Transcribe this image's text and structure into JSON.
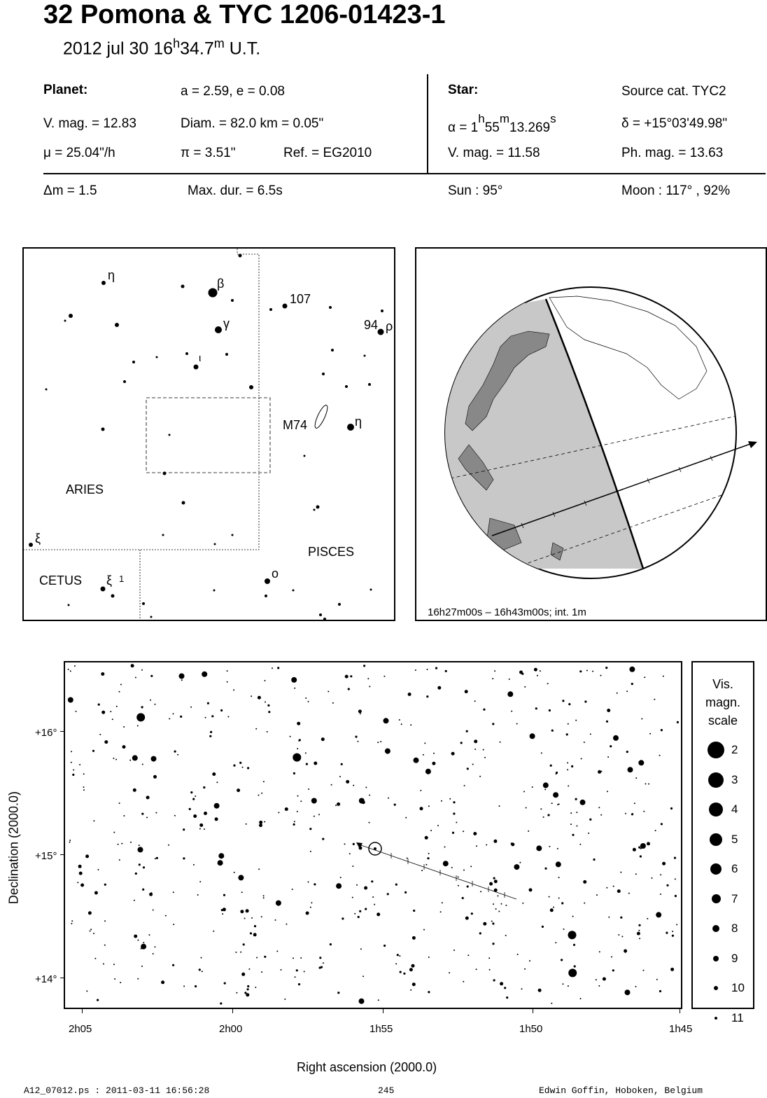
{
  "header": {
    "title": "32 Pomona  &  TYC 1206-01423-1",
    "date": "2012 jul 30  16",
    "time_h": "h",
    "time_min": "34.7",
    "time_m": "m",
    "time_ut": " U.T."
  },
  "planet": {
    "heading": "Planet:",
    "orbit": "a = 2.59, e = 0.08",
    "vmag": "V. mag. = 12.83",
    "diam": "Diam. = 82.0 km = 0.05\"",
    "mu": "μ =  25.04\"/h",
    "pi": "π =  3.51\"",
    "ref": "Ref. = EG2010"
  },
  "star": {
    "heading": "Star:",
    "source": "Source cat.  TYC2",
    "alpha": "α =  1",
    "alpha_h": "h",
    "alpha_m_val": "55",
    "alpha_m": "m",
    "alpha_s_val": "13.269",
    "alpha_s": "s",
    "delta": "δ = +15°03'49.98\"",
    "vmag": "V. mag. = 11.58",
    "phmag": "Ph. mag. = 13.63"
  },
  "event": {
    "dm": "Δm = 1.5",
    "maxdur": "Max. dur. = 6.5s",
    "sun": "Sun :  95°",
    "moon": "Moon : 117° , 92%"
  },
  "finder": {
    "labels": {
      "eta1": "η",
      "beta": "β",
      "gamma": "γ",
      "iota": "ι",
      "n107": "107",
      "n94": "94",
      "rho": "ρ",
      "m74": "M74",
      "eta2": "η",
      "aries": "ARIES",
      "xi": "ξ",
      "pisces": "PISCES",
      "cetus": "CETUS",
      "xi1": "ξ",
      "xi1sup": "1",
      "omicron": "o"
    }
  },
  "globe": {
    "caption": "16h27m00s – 16h43m00s; int.  1m"
  },
  "starchart": {
    "ylabel": "Declination (2000.0)",
    "xlabel": "Right ascension (2000.0)",
    "dec_ticks": [
      "+16°",
      "+15°",
      "+14°"
    ],
    "ra_ticks": [
      "2h05",
      "2h00",
      "1h55",
      "1h50",
      "1h45"
    ]
  },
  "legend": {
    "title_lines": [
      "Vis.",
      "magn.",
      "scale"
    ],
    "mags": [
      "2",
      "3",
      "4",
      "5",
      "6",
      "7",
      "8",
      "9",
      "10",
      "11"
    ]
  },
  "footer": {
    "left": "A12_07012.ps : 2011-03-11 16:56:28",
    "center": "245",
    "right": "Edwin Goffin, Hoboken, Belgium"
  },
  "colors": {
    "background": "#ffffff",
    "ink": "#000000",
    "night_shade": "#c8c8c8"
  }
}
